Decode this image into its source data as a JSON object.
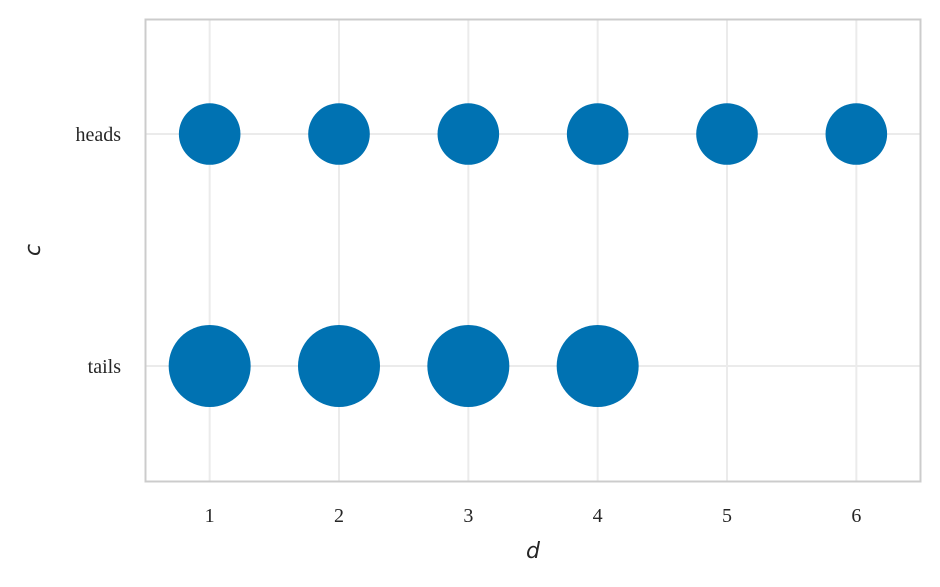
{
  "chart_data": {
    "type": "scatter",
    "title": "",
    "xlabel": "d",
    "ylabel": "c",
    "xlim": [
      0.5,
      6.5
    ],
    "x_ticks": [
      1,
      2,
      3,
      4,
      5,
      6
    ],
    "y_categories": [
      "heads",
      "tails"
    ],
    "grid": true,
    "legend": "none",
    "marker_color": "#0072B2",
    "points": [
      {
        "x": 1,
        "y": "heads",
        "size": 0.0833
      },
      {
        "x": 2,
        "y": "heads",
        "size": 0.0833
      },
      {
        "x": 3,
        "y": "heads",
        "size": 0.0833
      },
      {
        "x": 4,
        "y": "heads",
        "size": 0.0833
      },
      {
        "x": 5,
        "y": "heads",
        "size": 0.0833
      },
      {
        "x": 6,
        "y": "heads",
        "size": 0.0833
      },
      {
        "x": 1,
        "y": "tails",
        "size": 0.125
      },
      {
        "x": 2,
        "y": "tails",
        "size": 0.125
      },
      {
        "x": 3,
        "y": "tails",
        "size": 0.125
      },
      {
        "x": 4,
        "y": "tails",
        "size": 0.125
      }
    ]
  }
}
